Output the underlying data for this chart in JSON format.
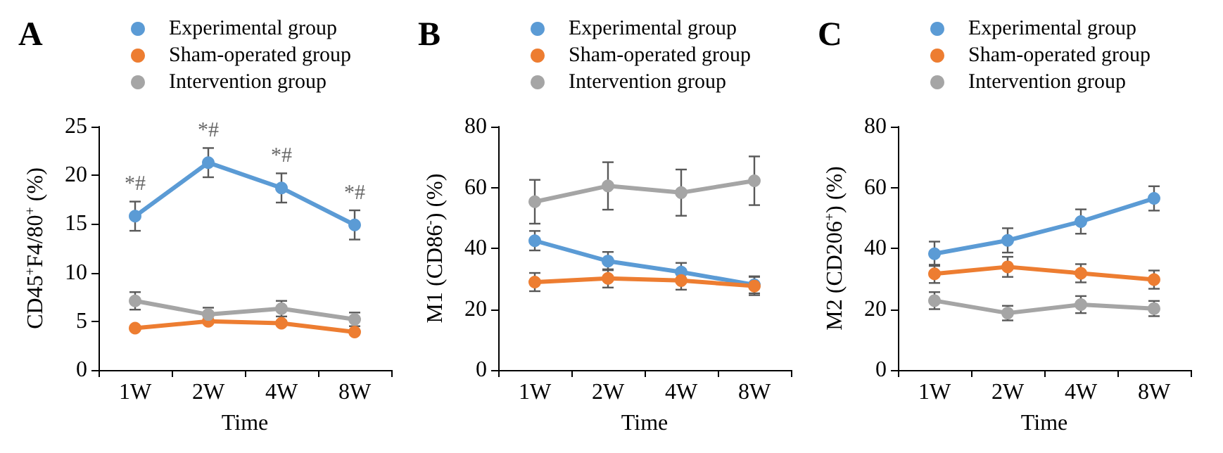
{
  "chart_data": [
    {
      "type": "line",
      "title": "A",
      "xlabel": "Time",
      "ylabel": "CD45$^{+}$F4/80$^{+}$ (%)",
      "categories": [
        "1W",
        "2W",
        "4W",
        "8W"
      ],
      "ylim": [
        0,
        25
      ],
      "yticks": [
        0,
        5,
        10,
        15,
        20,
        25
      ],
      "grid": false,
      "legend": "top",
      "marker": "circle",
      "series": [
        {
          "name": "Experimental group",
          "color": "#5b9bd5",
          "values": [
            15.8,
            21.3,
            18.7,
            14.9
          ],
          "errors": [
            1.5,
            1.5,
            1.5,
            1.5
          ]
        },
        {
          "name": "Sham-operated group",
          "color": "#ed7d31",
          "values": [
            4.3,
            5.0,
            4.8,
            3.9
          ]
        },
        {
          "name": "Intervention group",
          "color": "#a5a5a5",
          "values": [
            7.1,
            5.7,
            6.3,
            5.2
          ],
          "errors": [
            0.9,
            0.7,
            0.8,
            0.7
          ]
        }
      ],
      "annotations": [
        {
          "text": "*#",
          "x": "1W",
          "y": 15.8
        },
        {
          "text": "*#",
          "x": "2W",
          "y": 21.3
        },
        {
          "text": "*#",
          "x": "4W",
          "y": 18.7
        },
        {
          "text": "*#",
          "x": "8W",
          "y": 14.9
        }
      ]
    },
    {
      "type": "line",
      "title": "B",
      "xlabel": "Time",
      "ylabel": "M1 (CD86$^{-}$) (%)",
      "categories": [
        "1W",
        "2W",
        "4W",
        "8W"
      ],
      "ylim": [
        0,
        80
      ],
      "yticks": [
        0,
        20,
        40,
        60,
        80
      ],
      "grid": false,
      "legend": "top",
      "marker": "circle",
      "series": [
        {
          "name": "Experimental group",
          "color": "#5b9bd5",
          "values": [
            42.5,
            35.8,
            32.2,
            28.0
          ],
          "errors": [
            3.2,
            3.0,
            3.0,
            2.8
          ]
        },
        {
          "name": "Sham-operated group",
          "color": "#ed7d31",
          "values": [
            28.9,
            30.1,
            29.4,
            27.6
          ],
          "errors": [
            3.0,
            3.0,
            3.0,
            3.0
          ]
        },
        {
          "name": "Intervention group",
          "color": "#a5a5a5",
          "values": [
            55.3,
            60.5,
            58.3,
            62.2
          ],
          "errors": [
            7.2,
            7.8,
            7.6,
            8.0
          ]
        }
      ]
    },
    {
      "type": "line",
      "title": "C",
      "xlabel": "Time",
      "ylabel": "M2 (CD206$^{+}$) (%)",
      "categories": [
        "1W",
        "2W",
        "4W",
        "8W"
      ],
      "ylim": [
        0,
        80
      ],
      "yticks": [
        0,
        20,
        40,
        60,
        80
      ],
      "grid": false,
      "legend": "top",
      "marker": "circle",
      "series": [
        {
          "name": "Experimental group",
          "color": "#5b9bd5",
          "values": [
            38.2,
            42.6,
            48.8,
            56.4
          ],
          "errors": [
            4.0,
            4.0,
            4.0,
            4.0
          ]
        },
        {
          "name": "Sham-operated group",
          "color": "#ed7d31",
          "values": [
            31.6,
            33.9,
            31.8,
            29.7
          ],
          "errors": [
            3.0,
            3.3,
            3.0,
            3.0
          ]
        },
        {
          "name": "Intervention group",
          "color": "#a5a5a5",
          "values": [
            22.8,
            18.7,
            21.5,
            20.2
          ],
          "errors": [
            2.8,
            2.4,
            2.8,
            2.5
          ]
        }
      ]
    }
  ]
}
